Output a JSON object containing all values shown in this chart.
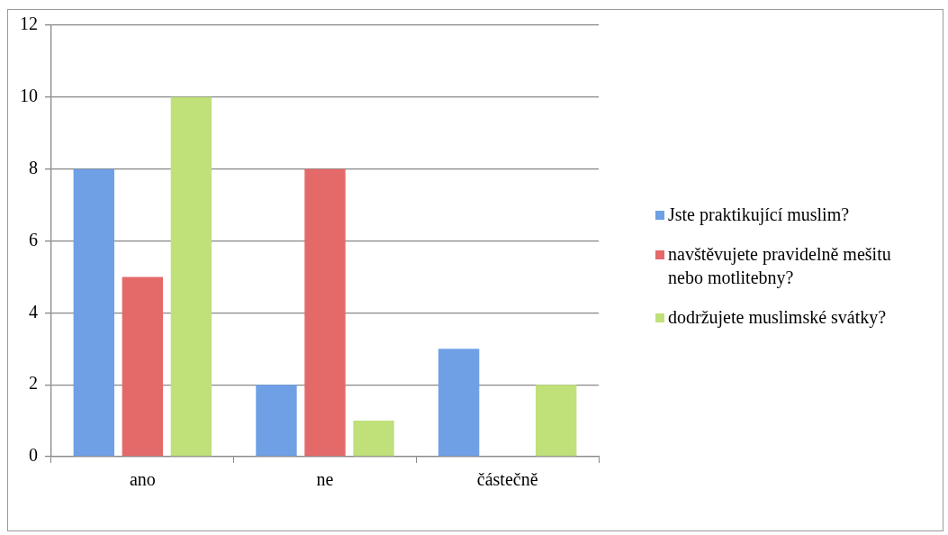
{
  "chart_data": {
    "type": "bar",
    "categories": [
      "ano",
      "ne",
      "částečně"
    ],
    "series": [
      {
        "name": "Jste praktikující muslim?",
        "color": "#6fa0e6",
        "values": [
          8,
          2,
          3
        ]
      },
      {
        "name": "navštěvujete pravidelně mešitu nebo motlitebny?",
        "color": "#e46a6a",
        "values": [
          5,
          8,
          0
        ]
      },
      {
        "name": "dodržujete muslimské svátky?",
        "color": "#c0e07a",
        "values": [
          10,
          1,
          2
        ]
      }
    ],
    "ylim": [
      0,
      12
    ],
    "yticks": [
      0,
      2,
      4,
      6,
      8,
      10,
      12
    ],
    "grid": "y",
    "legend": "right"
  }
}
